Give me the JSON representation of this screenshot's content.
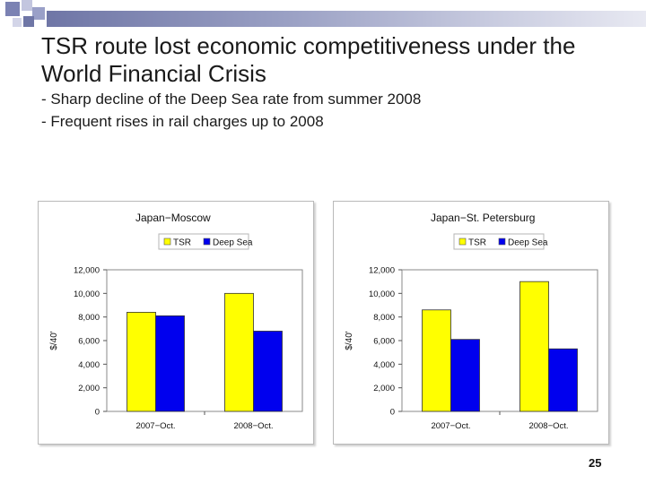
{
  "slide": {
    "title": "TSR route lost economic competitiveness under the World Financial Crisis",
    "bullets": [
      "- Sharp decline of the Deep Sea rate from summer 2008",
      "- Frequent rises in rail charges up to 2008"
    ],
    "page_number": "25",
    "colors": {
      "tsr": "#ffff00",
      "deep_sea": "#0000ee",
      "accent": "#6f76a6"
    }
  },
  "chart_data": [
    {
      "type": "bar",
      "title": "Japan−Moscow",
      "categories": [
        "2007−Oct.",
        "2008−Oct."
      ],
      "series": [
        {
          "name": "TSR",
          "values": [
            8400,
            10000
          ]
        },
        {
          "name": "Deep Sea",
          "values": [
            8100,
            6800
          ]
        }
      ],
      "ylabel": "$/40'",
      "ylim": [
        0,
        12000
      ],
      "yticks": [
        "0",
        "2,000",
        "4,000",
        "6,000",
        "8,000",
        "10,000",
        "12,000"
      ],
      "grid": false,
      "legend": "top"
    },
    {
      "type": "bar",
      "title": "Japan−St. Petersburg",
      "categories": [
        "2007−Oct.",
        "2008−Oct."
      ],
      "series": [
        {
          "name": "TSR",
          "values": [
            8600,
            11000
          ]
        },
        {
          "name": "Deep Sea",
          "values": [
            6100,
            5300
          ]
        }
      ],
      "ylabel": "$/40'",
      "ylim": [
        0,
        12000
      ],
      "yticks": [
        "0",
        "2,000",
        "4,000",
        "6,000",
        "8,000",
        "10,000",
        "12,000"
      ],
      "grid": false,
      "legend": "top"
    }
  ]
}
